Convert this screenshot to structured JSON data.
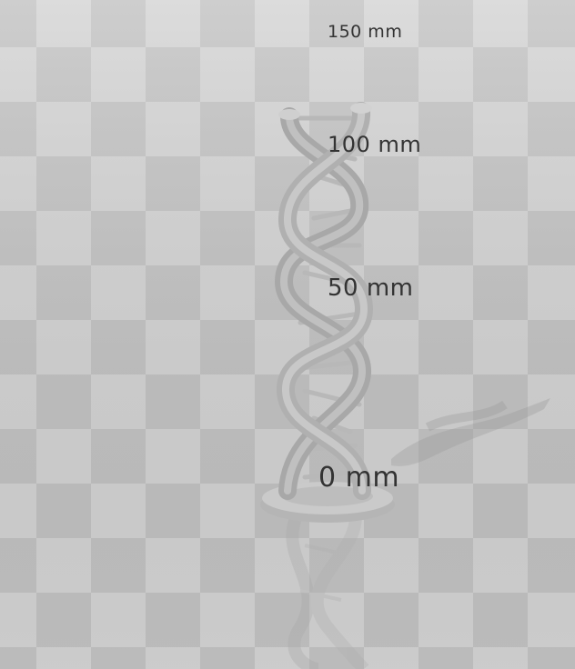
{
  "viewport": {
    "floor_light": "#d6d6d6",
    "floor_dark": "#c4c4c4",
    "model_color": "#bdbdbd"
  },
  "scale_labels": {
    "mm150": "150 mm",
    "mm100": "100 mm",
    "mm50": "50 mm",
    "mm0": "0 mm"
  }
}
